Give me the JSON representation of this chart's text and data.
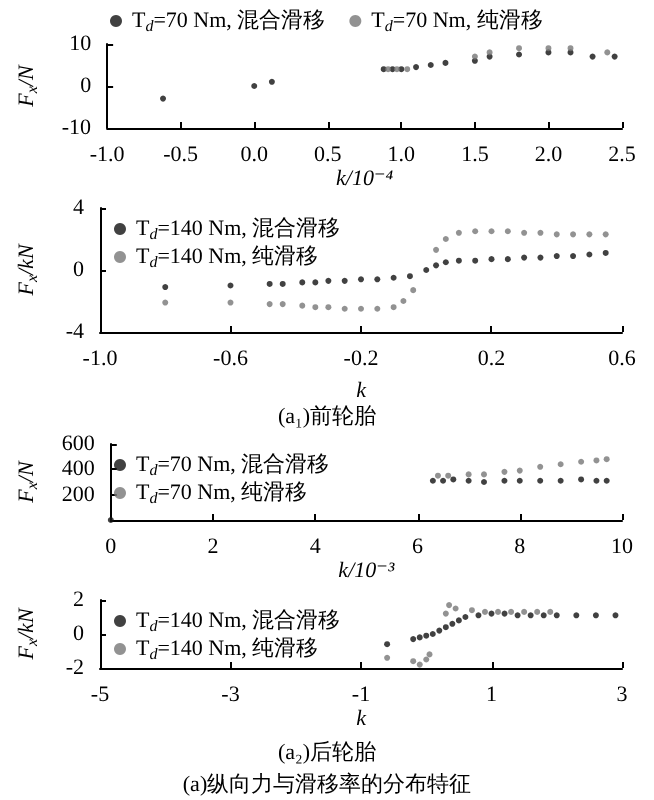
{
  "chart_data": [
    {
      "type": "scatter",
      "xlabel": "k/10⁻⁴",
      "ylabel": "F$_{x}$/N",
      "xlim": [
        -1,
        2.5
      ],
      "ylim": [
        -10,
        10
      ],
      "xticks": [
        {
          "value": -1,
          "label": "-1.0"
        },
        {
          "value": -0.5,
          "label": "-0.5"
        },
        {
          "value": 0,
          "label": "0.0"
        },
        {
          "value": 0.5,
          "label": "0.5"
        },
        {
          "value": 1,
          "label": "1.0"
        },
        {
          "value": 1.5,
          "label": "1.5"
        },
        {
          "value": 2,
          "label": "2.0"
        },
        {
          "value": 2.5,
          "label": "2.5"
        }
      ],
      "yticks": [
        -10,
        0,
        10
      ],
      "legend": "top",
      "marker": "circle",
      "grid": false,
      "series": [
        {
          "name": "T$_{d}$=70 Nm, 混合滑移",
          "color": "#111111",
          "x": [
            -0.62,
            0,
            0.12,
            0.88,
            0.94,
            1.0,
            1.1,
            1.2,
            1.3,
            1.5,
            1.6,
            1.8,
            2.0,
            2.15,
            2.3,
            2.45
          ],
          "values": [
            -3,
            0,
            1,
            4,
            4,
            4,
            4.5,
            5,
            5.5,
            6,
            7,
            7.5,
            8,
            8,
            7,
            7
          ]
        },
        {
          "name": "T$_{d}$=70 Nm, 纯滑移",
          "color": "#777777",
          "x": [
            0.91,
            0.97,
            1.04,
            1.5,
            1.6,
            1.8,
            2.0,
            2.15,
            2.4
          ],
          "values": [
            4,
            4,
            4,
            7,
            8,
            9,
            9,
            9,
            8
          ]
        }
      ]
    },
    {
      "type": "scatter",
      "xlabel": "k",
      "ylabel": "F$_{x}$/kN",
      "xlim": [
        -1,
        0.6
      ],
      "ylim": [
        -4,
        4
      ],
      "xticks": [
        {
          "value": -1,
          "label": "-1.0"
        },
        {
          "value": -0.6,
          "label": "-0.6"
        },
        {
          "value": -0.2,
          "label": "-0.2"
        },
        {
          "value": 0.2,
          "label": "0.2"
        },
        {
          "value": 0.6,
          "label": "0.6"
        }
      ],
      "yticks": [
        -4,
        0,
        4
      ],
      "legend": "top left",
      "marker": "circle",
      "grid": false,
      "annotations": [
        "(a₁)前轮胎"
      ],
      "series": [
        {
          "name": "T$_{d}$=140 Nm, 混合滑移",
          "color": "#111111",
          "x": [
            -0.8,
            -0.6,
            -0.48,
            -0.44,
            -0.38,
            -0.34,
            -0.3,
            -0.25,
            -0.2,
            -0.15,
            -0.1,
            -0.05,
            0,
            0.03,
            0.06,
            0.1,
            0.15,
            0.2,
            0.25,
            0.3,
            0.35,
            0.4,
            0.45,
            0.5,
            0.55
          ],
          "values": [
            -1.1,
            -1.0,
            -0.9,
            -0.9,
            -0.8,
            -0.8,
            -0.7,
            -0.7,
            -0.6,
            -0.6,
            -0.5,
            -0.4,
            0,
            0.3,
            0.5,
            0.6,
            0.6,
            0.7,
            0.7,
            0.8,
            0.8,
            0.9,
            0.9,
            1.0,
            1.1
          ]
        },
        {
          "name": "T$_{d}$=140 Nm, 纯滑移",
          "color": "#777777",
          "x": [
            -0.8,
            -0.6,
            -0.48,
            -0.44,
            -0.38,
            -0.34,
            -0.3,
            -0.25,
            -0.2,
            -0.15,
            -0.1,
            -0.07,
            -0.04,
            0.03,
            0.06,
            0.1,
            0.15,
            0.2,
            0.25,
            0.3,
            0.35,
            0.4,
            0.45,
            0.5,
            0.55
          ],
          "values": [
            -2.1,
            -2.1,
            -2.2,
            -2.2,
            -2.3,
            -2.4,
            -2.4,
            -2.5,
            -2.5,
            -2.5,
            -2.4,
            -2.0,
            -1.3,
            1.3,
            2.0,
            2.4,
            2.5,
            2.5,
            2.5,
            2.4,
            2.4,
            2.3,
            2.3,
            2.3,
            2.3
          ]
        }
      ]
    },
    {
      "type": "scatter",
      "xlabel": "k/10⁻³",
      "ylabel": "F$_{x}$/N",
      "xlim": [
        0,
        10
      ],
      "ylim": [
        0,
        600
      ],
      "xticks": [
        0,
        2,
        4,
        6,
        8,
        10
      ],
      "yticks": [
        {
          "value": 0,
          "label": null
        },
        200,
        400,
        600
      ],
      "legend": "top left",
      "marker": "circle",
      "grid": false,
      "series": [
        {
          "name": "T$_{d}$=70 Nm, 混合滑移",
          "color": "#111111",
          "x": [
            0,
            6.3,
            6.5,
            6.7,
            7.0,
            7.3,
            7.7,
            8.0,
            8.4,
            8.8,
            9.2,
            9.5,
            9.7
          ],
          "values": [
            0,
            310,
            310,
            320,
            310,
            300,
            310,
            310,
            310,
            310,
            320,
            310,
            310
          ]
        },
        {
          "name": "T$_{d}$=70 Nm, 纯滑移",
          "color": "#777777",
          "x": [
            6.4,
            6.6,
            7.0,
            7.3,
            7.7,
            8.0,
            8.4,
            8.8,
            9.2,
            9.5,
            9.7
          ],
          "values": [
            350,
            350,
            360,
            360,
            380,
            390,
            420,
            440,
            460,
            470,
            480
          ]
        }
      ]
    },
    {
      "type": "scatter",
      "xlabel": "k",
      "ylabel": "F$_{x}$/kN",
      "xlim": [
        -5,
        3
      ],
      "ylim": [
        -2,
        2
      ],
      "xticks": [
        -5,
        -3,
        -1,
        1,
        3
      ],
      "yticks": [
        -2,
        0,
        2
      ],
      "legend": "top left",
      "marker": "circle",
      "grid": false,
      "annotations": [
        "(a₂)后轮胎",
        "(a)纵向力与滑移率的分布特征"
      ],
      "series": [
        {
          "name": "T$_{d}$=140 Nm, 混合滑移",
          "color": "#111111",
          "x": [
            -0.6,
            -0.2,
            -0.1,
            0,
            0.1,
            0.2,
            0.3,
            0.4,
            0.5,
            0.6,
            0.8,
            1.0,
            1.2,
            1.4,
            1.6,
            1.8,
            2.0,
            2.3,
            2.6,
            2.9
          ],
          "values": [
            -0.6,
            -0.3,
            -0.2,
            -0.1,
            0,
            0.2,
            0.4,
            0.6,
            0.8,
            1.0,
            1.1,
            1.2,
            1.2,
            1.1,
            1.1,
            1.1,
            1.1,
            1.1,
            1.1,
            1.1
          ]
        },
        {
          "name": "T$_{d}$=140 Nm, 纯滑移",
          "color": "#777777",
          "x": [
            -0.6,
            -0.2,
            -0.1,
            0,
            0.05,
            0.3,
            0.35,
            0.45,
            0.7,
            0.9,
            1.1,
            1.3,
            1.5,
            1.7,
            1.9
          ],
          "values": [
            -1.4,
            -1.6,
            -1.8,
            -1.5,
            -1.2,
            1.2,
            1.7,
            1.5,
            1.4,
            1.3,
            1.3,
            1.3,
            1.3,
            1.3,
            1.3
          ]
        }
      ]
    }
  ]
}
